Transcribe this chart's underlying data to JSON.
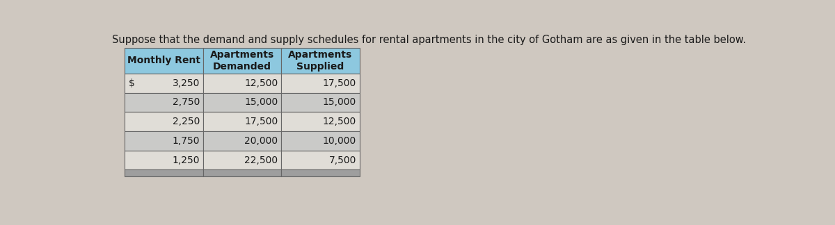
{
  "title": "Suppose that the demand and supply schedules for rental apartments in the city of Gotham are as given in the table below.",
  "title_fontsize": 10.5,
  "col_headers": [
    "Monthly Rent",
    "Apartments\nDemanded",
    "Apartments\nSupplied"
  ],
  "dollar_sign": "$",
  "rows": [
    [
      "3,250",
      "12,500",
      "17,500"
    ],
    [
      "2,750",
      "15,000",
      "15,000"
    ],
    [
      "2,250",
      "17,500",
      "12,500"
    ],
    [
      "1,750",
      "20,000",
      "10,000"
    ],
    [
      "1,250",
      "22,500",
      "7,500"
    ]
  ],
  "header_bg": "#8dc8df",
  "row_bg_light": "#e0ddd7",
  "row_bg_dark": "#cacac8",
  "footer_bg": "#9e9e9e",
  "border_color": "#666666",
  "text_color": "#1a1a1a",
  "bg_color": "#cfc8c0",
  "data_fontsize": 10,
  "header_fontsize": 10
}
